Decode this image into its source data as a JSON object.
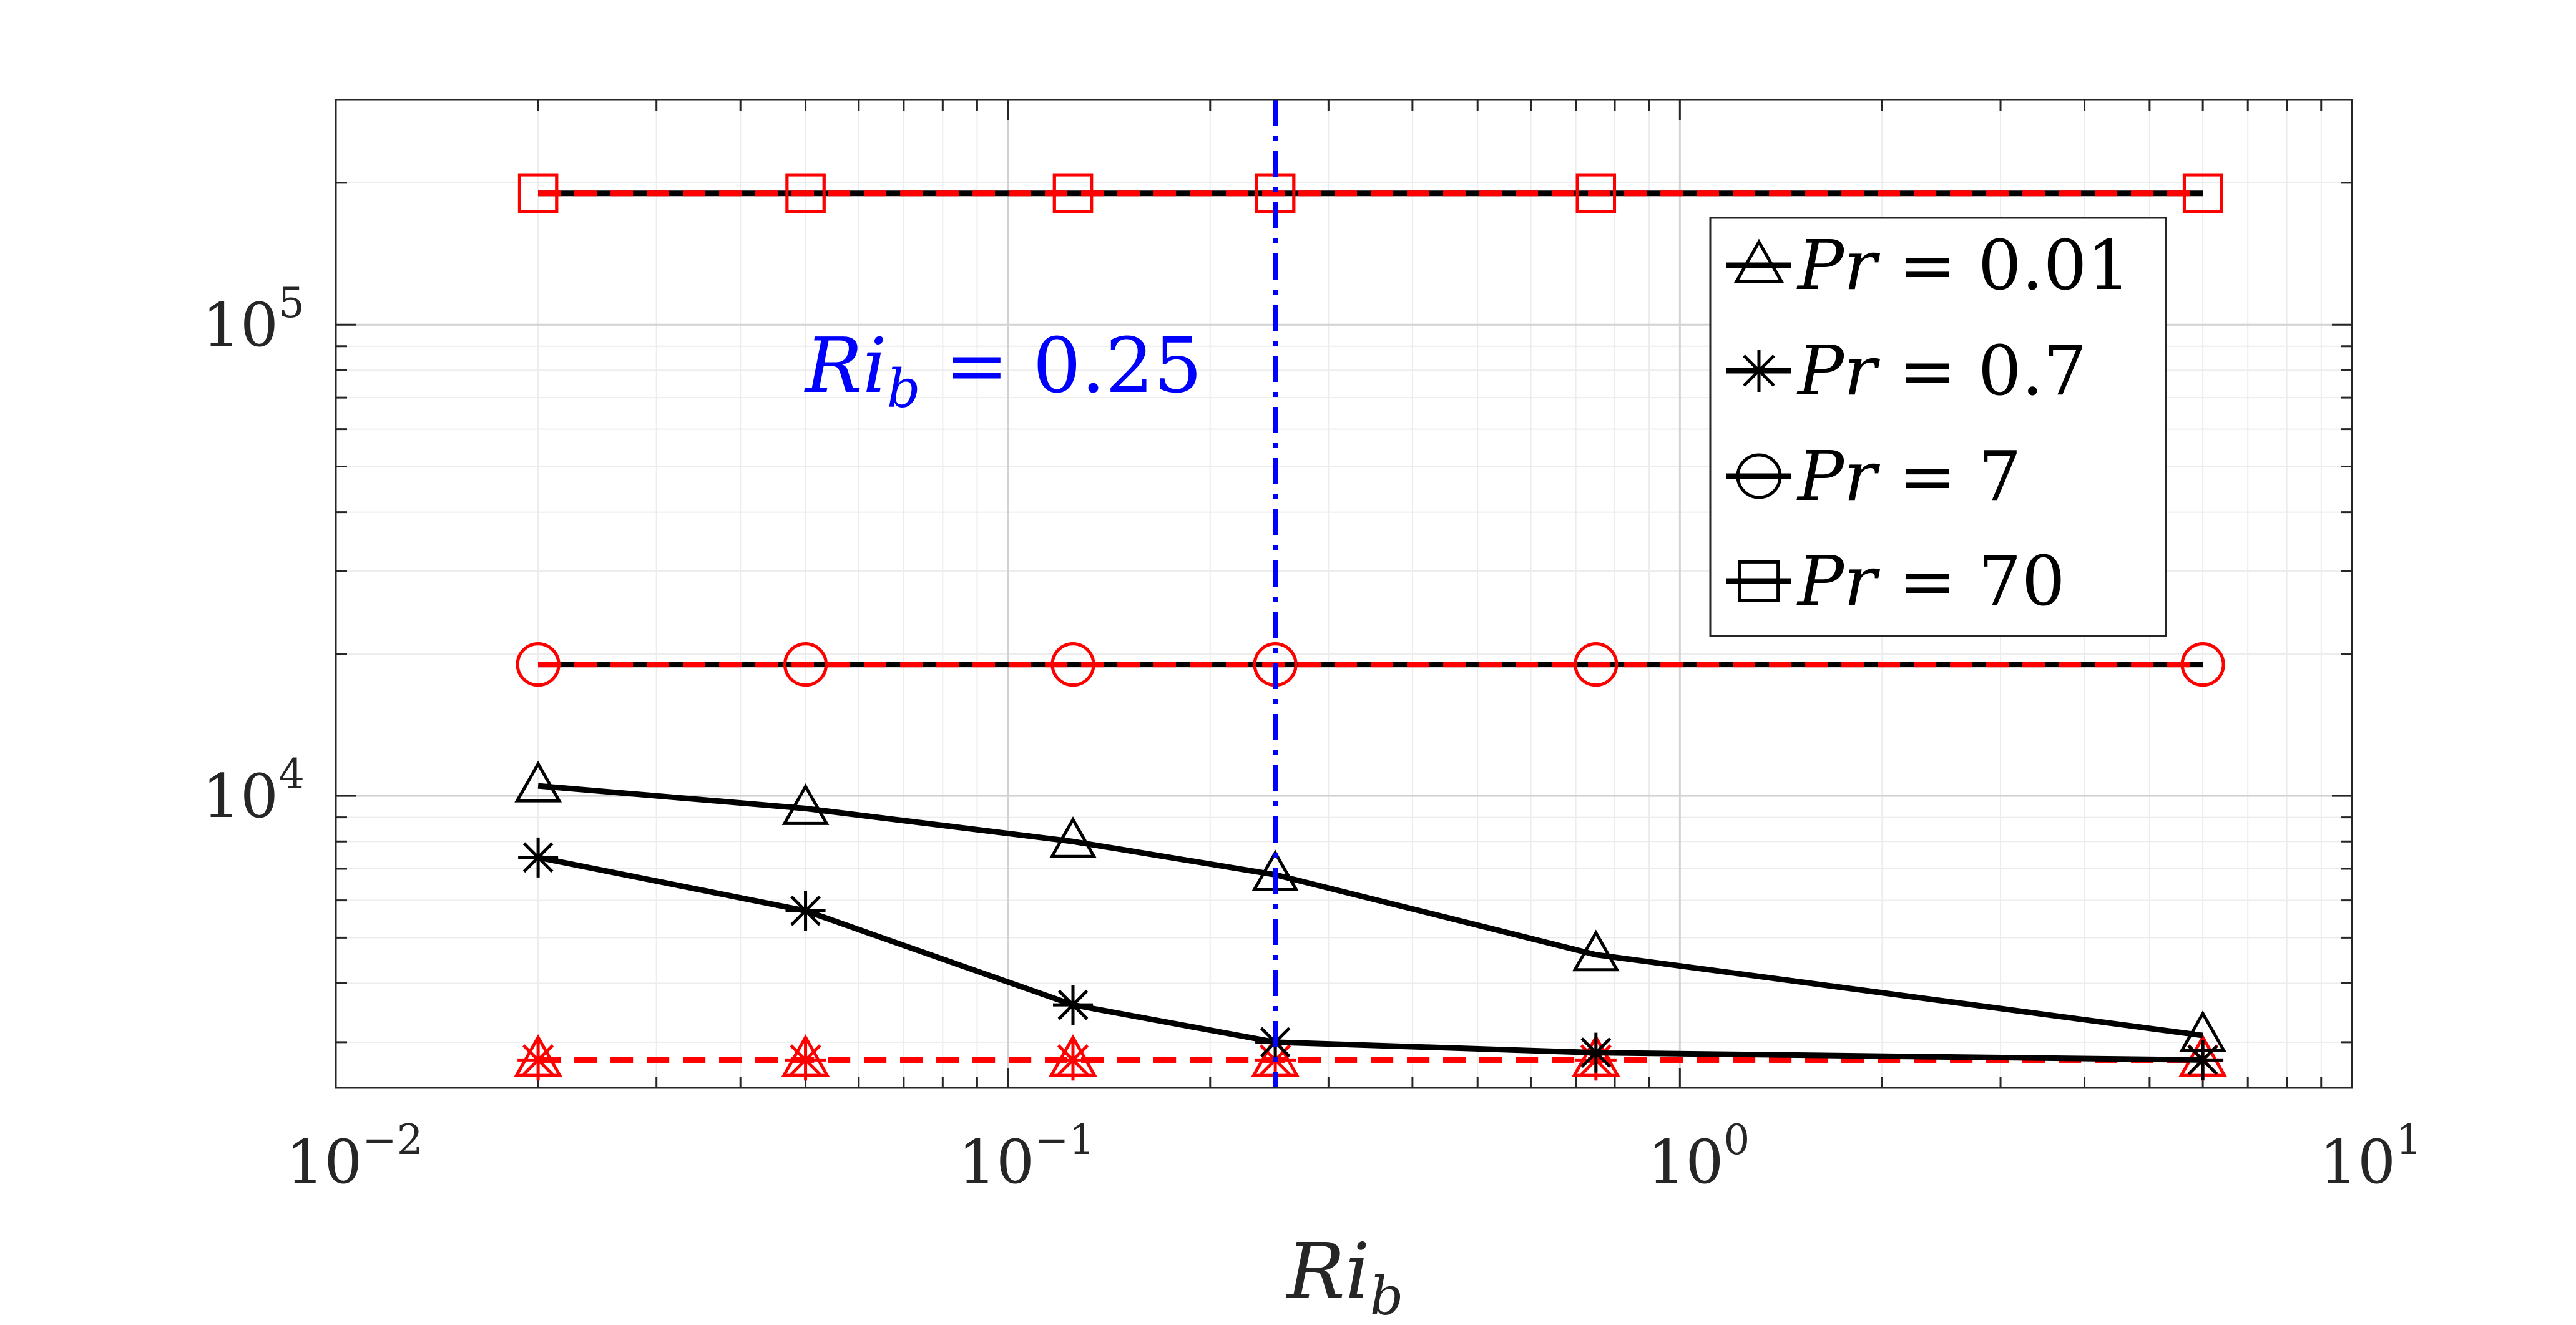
{
  "chart_data": {
    "type": "line",
    "xscale": "log",
    "yscale": "log",
    "xlim": [
      0.01,
      10
    ],
    "ylim": [
      2400,
      300000
    ],
    "grid": true,
    "legend_placement": "top-right",
    "xlabel": {
      "base": "Ri",
      "sub": "b"
    },
    "ylabel": "",
    "title": "",
    "x_ticks": [
      {
        "value": 0.01,
        "base": "10",
        "exp": "−2"
      },
      {
        "value": 0.1,
        "base": "10",
        "exp": "−1"
      },
      {
        "value": 1,
        "base": "10",
        "exp": "0"
      },
      {
        "value": 10,
        "base": "10",
        "exp": "1"
      }
    ],
    "y_ticks": [
      {
        "value": 10000,
        "base": "10",
        "exp": "4"
      },
      {
        "value": 100000,
        "base": "10",
        "exp": "5"
      }
    ],
    "x": [
      0.02,
      0.05,
      0.125,
      0.25,
      0.75,
      6
    ],
    "series": [
      {
        "name": "Pr = 0.01",
        "var": "Pr",
        "rel": " = 0.01",
        "marker": "triangle",
        "color": "#000000",
        "dash": "solid",
        "values": [
          10500,
          9400,
          8000,
          6800,
          4600,
          3100
        ]
      },
      {
        "name": "Pr = 0.7",
        "var": "Pr",
        "rel": " = 0.7",
        "marker": "star",
        "color": "#000000",
        "dash": "solid",
        "values": [
          7400,
          5700,
          3600,
          3000,
          2850,
          2750
        ]
      },
      {
        "name": "Pr = 7",
        "var": "Pr",
        "rel": " = 7",
        "marker": "circle",
        "color": "#000000",
        "dash": "solid",
        "values": [
          19000,
          19000,
          19000,
          19000,
          19000,
          19000
        ]
      },
      {
        "name": "Pr = 70",
        "var": "Pr",
        "rel": " = 70",
        "marker": "square",
        "color": "#000000",
        "dash": "solid",
        "values": [
          190000,
          190000,
          190000,
          190000,
          190000,
          190000
        ]
      }
    ],
    "reference_series": [
      {
        "marker": "triangle",
        "color": "#ff0000",
        "dash": "dashed",
        "values": [
          2750,
          2750,
          2750,
          2750,
          2750,
          2750
        ]
      },
      {
        "marker": "star",
        "color": "#ff0000",
        "dash": "dashed",
        "values": [
          2750,
          2750,
          2750,
          2750,
          2750,
          2750
        ]
      },
      {
        "marker": "circle",
        "color": "#ff0000",
        "dash": "dashed",
        "values": [
          19000,
          19000,
          19000,
          19000,
          19000,
          19000
        ]
      },
      {
        "marker": "square",
        "color": "#ff0000",
        "dash": "dashed",
        "values": [
          190000,
          190000,
          190000,
          190000,
          190000,
          190000
        ]
      }
    ],
    "annotation": {
      "x": 0.25,
      "color": "#0000ff",
      "style": "dash-dot",
      "label_var": "Ri",
      "label_sub": "b",
      "label_rel": " = 0.25"
    }
  }
}
